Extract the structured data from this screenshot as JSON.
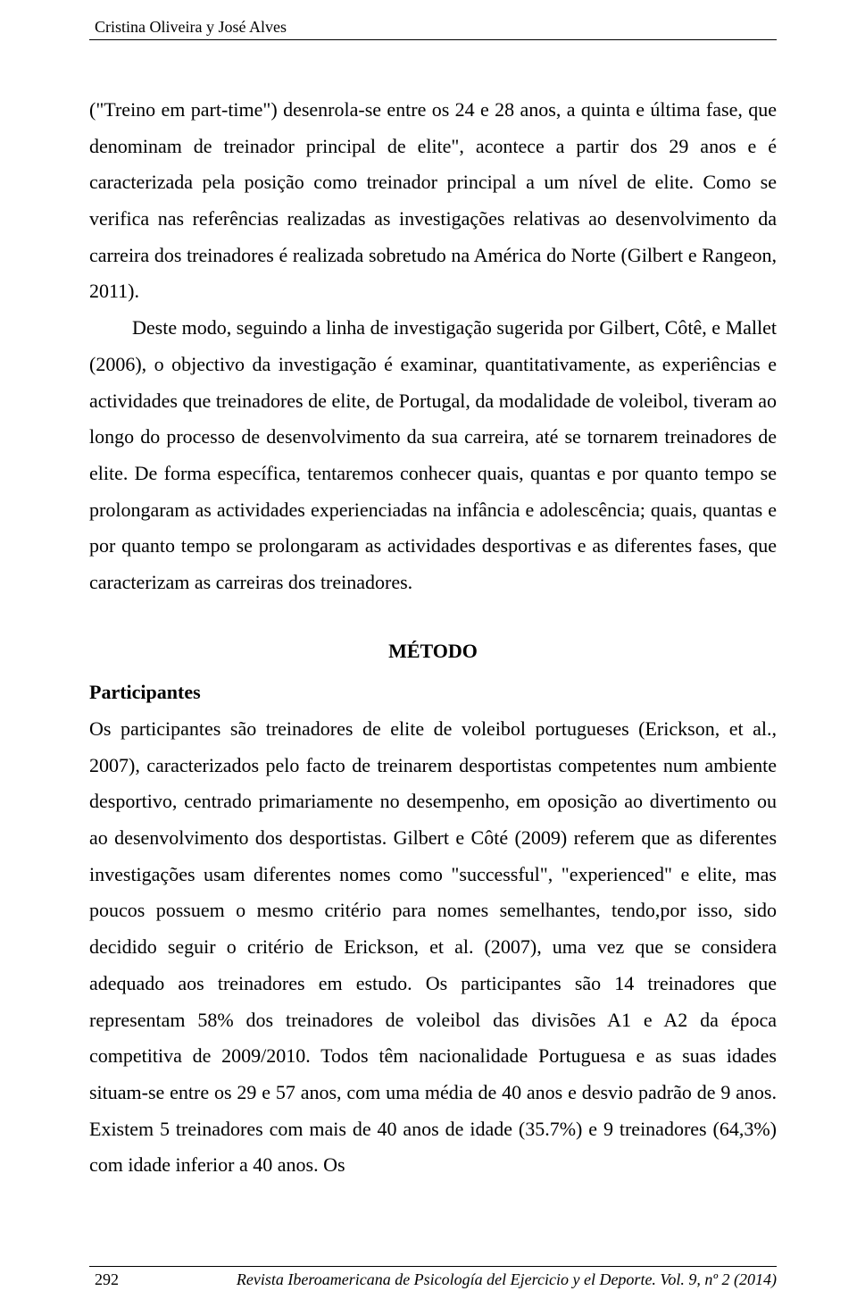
{
  "header": {
    "authors": "Cristina Oliveira y José Alves"
  },
  "body": {
    "paragraph1": "(\"Treino em part-time\") desenrola-se entre os 24 e 28 anos, a quinta e última fase, que denominam de treinador principal de elite\", acontece a partir dos 29 anos e é caracterizada pela posição como treinador principal a um nível de elite. Como se verifica nas referências realizadas as investigações relativas ao desenvolvimento da carreira dos treinadores é realizada sobretudo na América do Norte (Gilbert e Rangeon, 2011).",
    "paragraph2": "Deste modo, seguindo a linha de investigação sugerida por Gilbert, Côtê, e Mallet (2006), o objectivo da investigação é examinar, quantitativamente, as experiências e actividades que treinadores de elite, de Portugal, da modalidade de voleibol, tiveram ao longo do processo de desenvolvimento da sua carreira, até se tornarem treinadores de elite. De forma específica, tentaremos conhecer quais, quantas e por quanto tempo se prolongaram as actividades experienciadas na infância e adolescência; quais, quantas e por quanto tempo se prolongaram as actividades desportivas e as diferentes fases, que caracterizam as carreiras dos treinadores.",
    "section_heading": "MÉTODO",
    "subsection": "Participantes",
    "paragraph3": "Os participantes são treinadores de elite de voleibol portugueses (Erickson, et al., 2007), caracterizados pelo facto de treinarem desportistas competentes num ambiente desportivo, centrado primariamente no desempenho, em oposição ao divertimento ou ao desenvolvimento dos desportistas. Gilbert e Côté (2009) referem que as diferentes investigações usam diferentes nomes como \"successful\", \"experienced\" e elite, mas poucos possuem o mesmo critério para nomes semelhantes, tendo,por isso, sido decidido seguir o critério de Erickson, et al. (2007), uma vez que se considera adequado aos treinadores em estudo. Os participantes são 14 treinadores que representam 58% dos treinadores de voleibol das divisões A1 e A2 da época competitiva de 2009/2010. Todos têm nacionalidade Portuguesa e as suas idades situam-se entre os 29 e 57 anos, com uma média de 40 anos e desvio padrão de 9 anos. Existem 5 treinadores com mais de 40 anos de idade (35.7%) e 9 treinadores (64,3%) com idade inferior a 40 anos. Os"
  },
  "footer": {
    "page_number": "292",
    "journal": "Revista Iberoamericana de Psicología del Ejercicio y el Deporte. Vol. 9, nº 2 (2014)"
  }
}
